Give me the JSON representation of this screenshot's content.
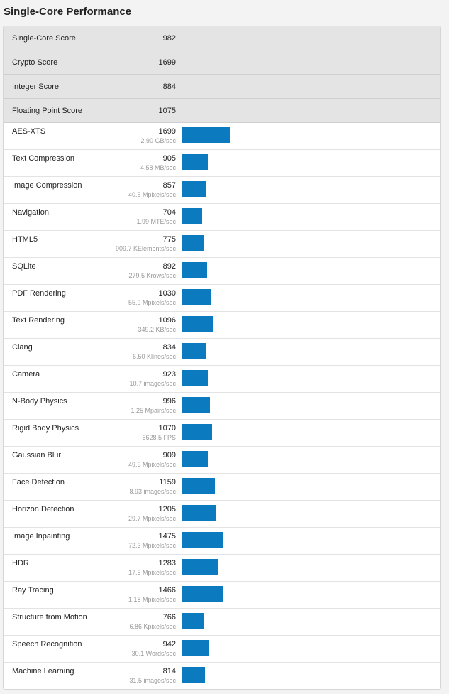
{
  "header": {
    "title": "Single-Core Performance"
  },
  "colors": {
    "bar": "#0b7abf",
    "summary_bg": "#e4e4e4"
  },
  "bar_scale_max": 1699,
  "summary": [
    {
      "name": "Single-Core Score",
      "score": "982"
    },
    {
      "name": "Crypto Score",
      "score": "1699"
    },
    {
      "name": "Integer Score",
      "score": "884"
    },
    {
      "name": "Floating Point Score",
      "score": "1075"
    }
  ],
  "benchmarks": [
    {
      "name": "AES-XTS",
      "score": "1699",
      "rate": "2.90 GB/sec"
    },
    {
      "name": "Text Compression",
      "score": "905",
      "rate": "4.58 MB/sec"
    },
    {
      "name": "Image Compression",
      "score": "857",
      "rate": "40.5 Mpixels/sec"
    },
    {
      "name": "Navigation",
      "score": "704",
      "rate": "1.99 MTE/sec"
    },
    {
      "name": "HTML5",
      "score": "775",
      "rate": "909.7 KElements/sec"
    },
    {
      "name": "SQLite",
      "score": "892",
      "rate": "279.5 Krows/sec"
    },
    {
      "name": "PDF Rendering",
      "score": "1030",
      "rate": "55.9 Mpixels/sec"
    },
    {
      "name": "Text Rendering",
      "score": "1096",
      "rate": "349.2 KB/sec"
    },
    {
      "name": "Clang",
      "score": "834",
      "rate": "6.50 Klines/sec"
    },
    {
      "name": "Camera",
      "score": "923",
      "rate": "10.7 images/sec"
    },
    {
      "name": "N-Body Physics",
      "score": "996",
      "rate": "1.25 Mpairs/sec"
    },
    {
      "name": "Rigid Body Physics",
      "score": "1070",
      "rate": "6628.5 FPS"
    },
    {
      "name": "Gaussian Blur",
      "score": "909",
      "rate": "49.9 Mpixels/sec"
    },
    {
      "name": "Face Detection",
      "score": "1159",
      "rate": "8.93 images/sec"
    },
    {
      "name": "Horizon Detection",
      "score": "1205",
      "rate": "29.7 Mpixels/sec"
    },
    {
      "name": "Image Inpainting",
      "score": "1475",
      "rate": "72.3 Mpixels/sec"
    },
    {
      "name": "HDR",
      "score": "1283",
      "rate": "17.5 Mpixels/sec"
    },
    {
      "name": "Ray Tracing",
      "score": "1466",
      "rate": "1.18 Mpixels/sec"
    },
    {
      "name": "Structure from Motion",
      "score": "766",
      "rate": "6.86 Kpixels/sec"
    },
    {
      "name": "Speech Recognition",
      "score": "942",
      "rate": "30.1 Words/sec"
    },
    {
      "name": "Machine Learning",
      "score": "814",
      "rate": "31.5 images/sec"
    }
  ]
}
